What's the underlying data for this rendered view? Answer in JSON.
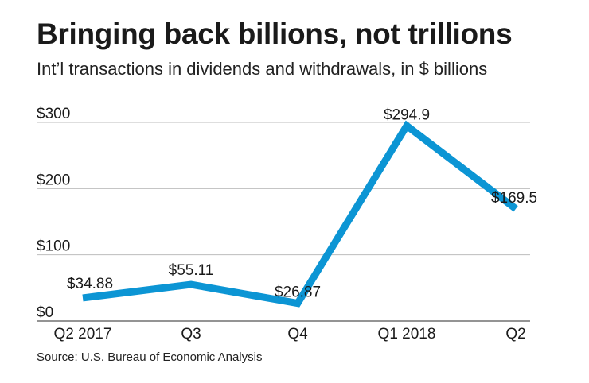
{
  "title": "Bringing back billions, not trillions",
  "subtitle": "Int’l transactions in dividends and withdrawals, in $ billions",
  "source": "Source: U.S. Bureau of Economic Analysis",
  "chart_data": {
    "type": "line",
    "title": "Bringing back billions, not trillions",
    "subtitle": "Int’l transactions in dividends and withdrawals, in $ billions",
    "categories": [
      "Q2 2017",
      "Q3",
      "Q4",
      "Q1 2018",
      "Q2"
    ],
    "values": [
      34.88,
      55.11,
      26.87,
      294.9,
      169.5
    ],
    "data_labels": [
      "$34.88",
      "$55.11",
      "$26.87",
      "$294.9",
      "$169.5"
    ],
    "y_ticks": [
      0,
      100,
      200,
      300
    ],
    "y_tick_labels": [
      "$0",
      "$100",
      "$200",
      "$300"
    ],
    "ylim": [
      0,
      300
    ],
    "xlabel": "",
    "ylabel": "",
    "grid": true,
    "line_color": "#0c95d4"
  }
}
